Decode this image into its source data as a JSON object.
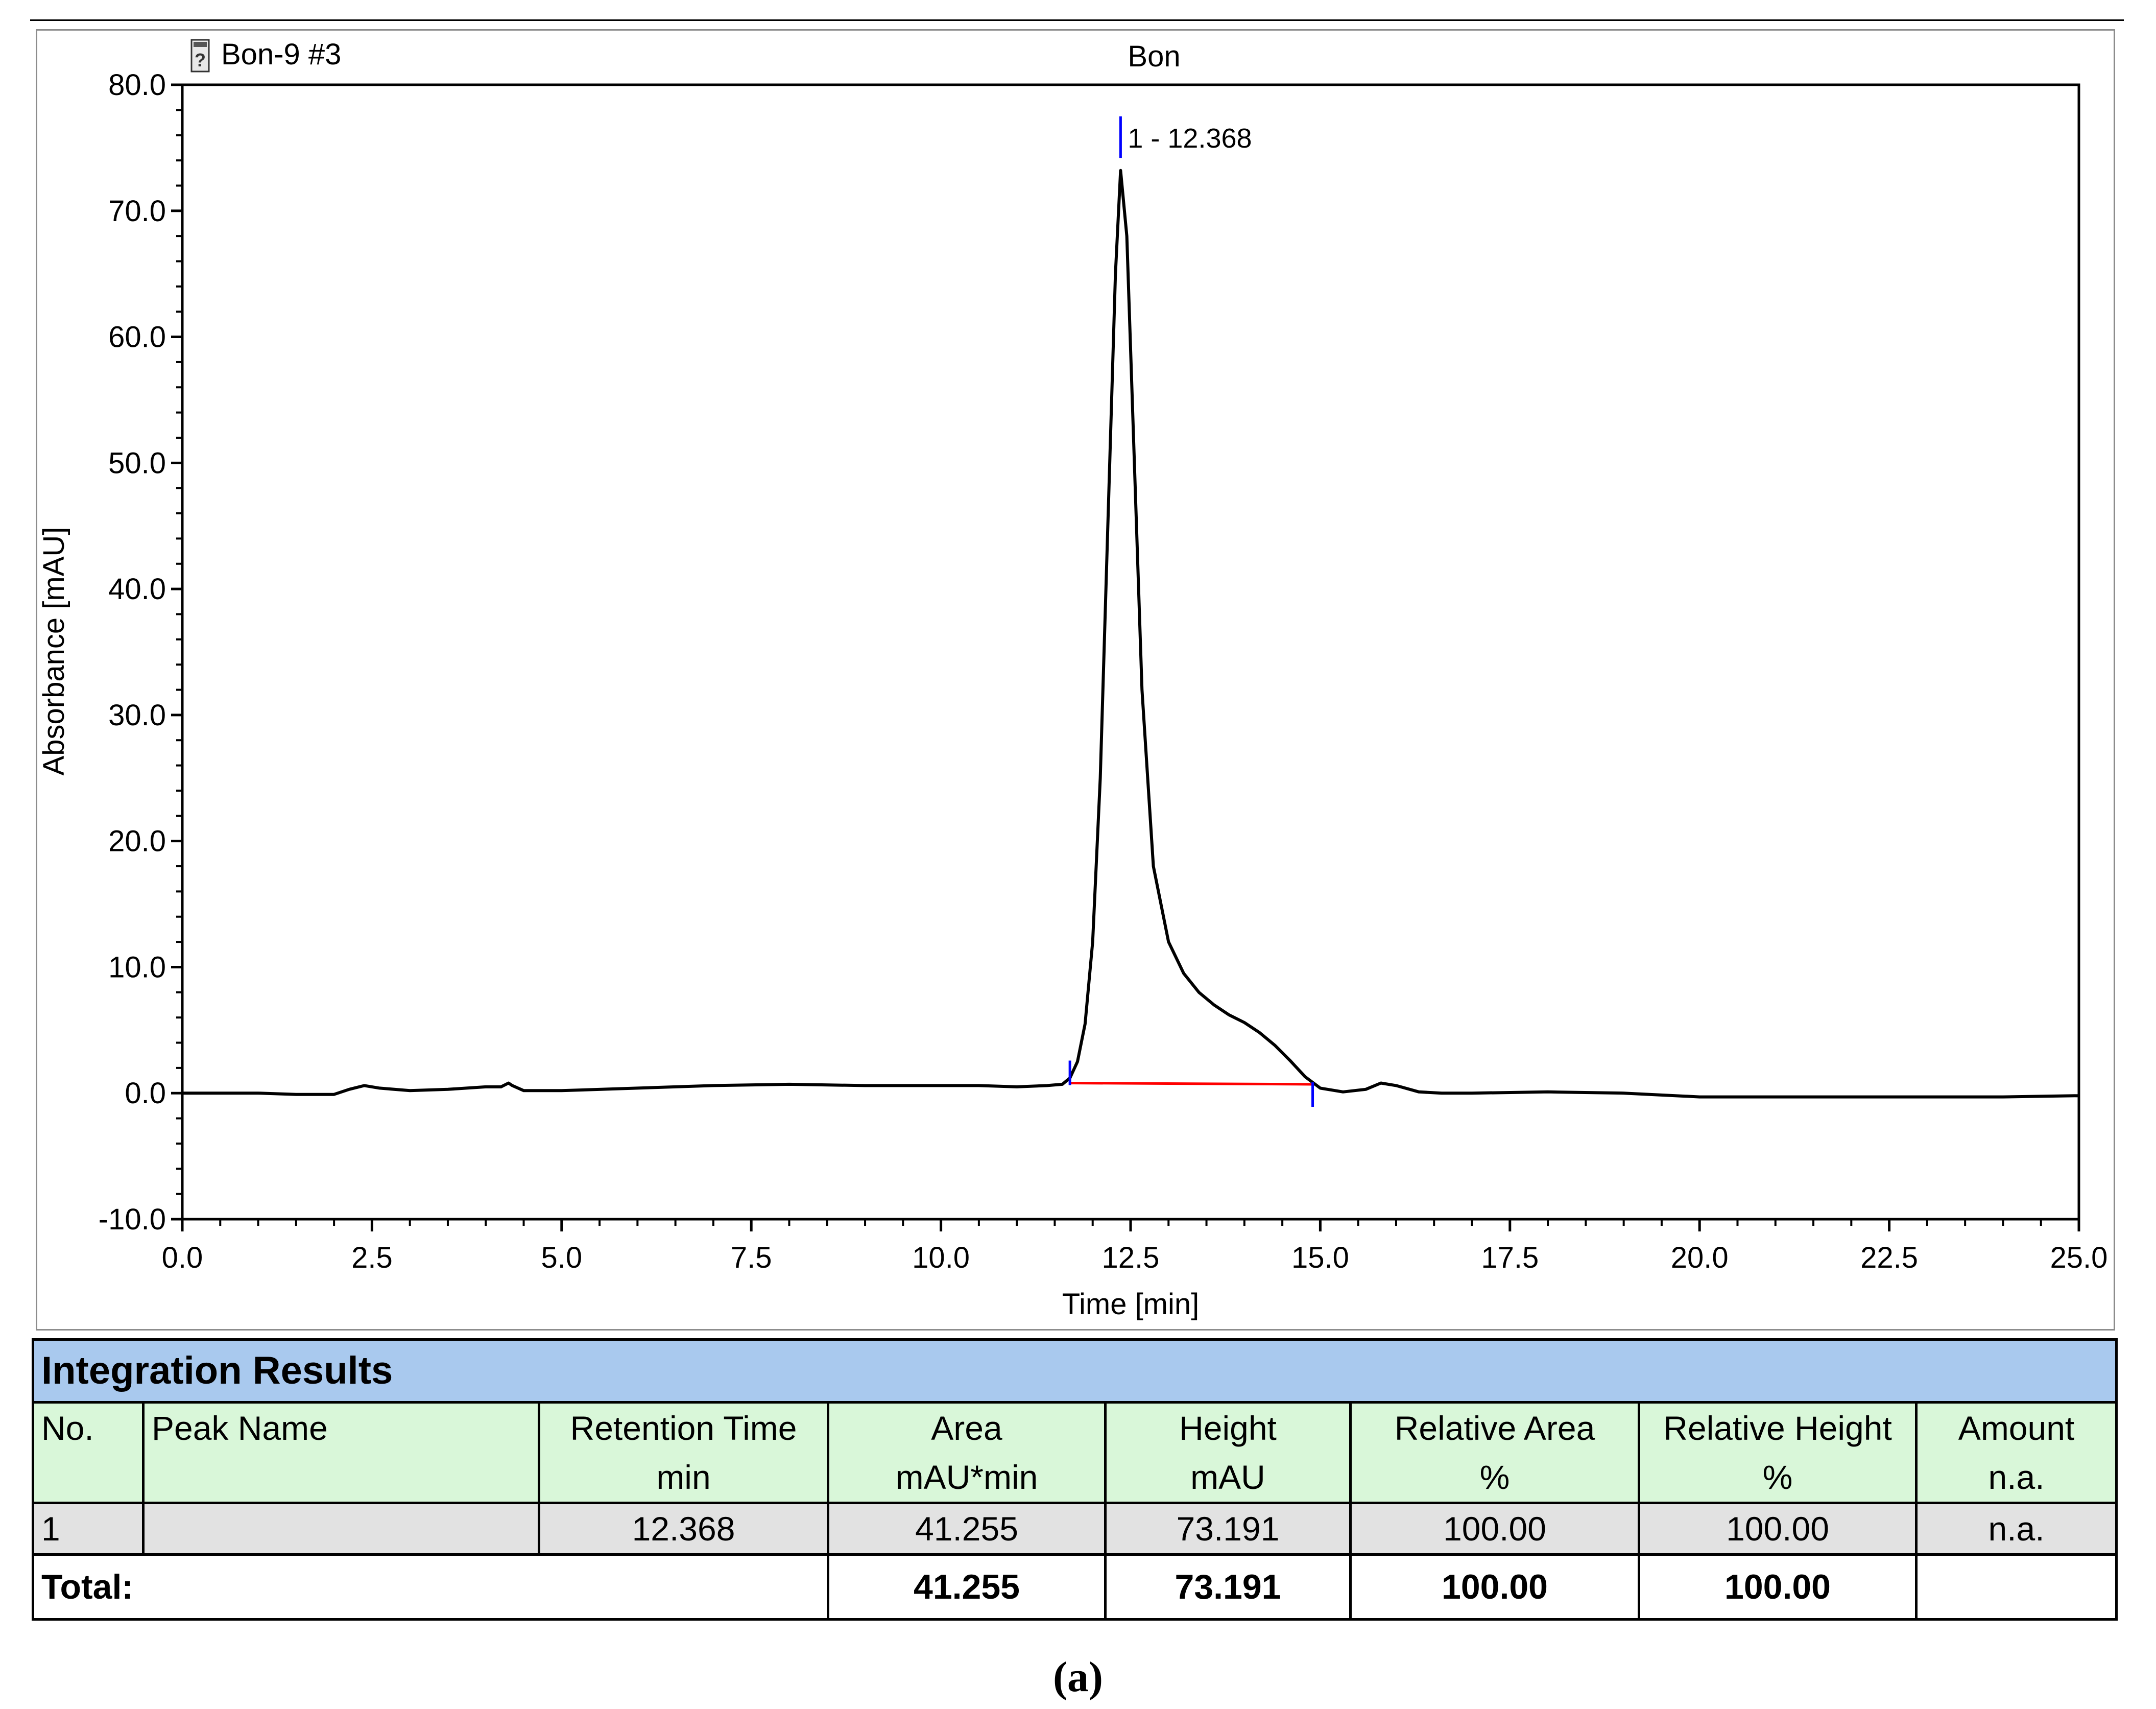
{
  "chart_data": {
    "type": "line",
    "sample_label": "Bon-9 #3",
    "title": "Bon",
    "xlabel": "Time [min]",
    "ylabel": "Absorbance [mAU]",
    "xlim": [
      0,
      25
    ],
    "ylim": [
      -10,
      80
    ],
    "x_ticks": [
      "0.0",
      "2.5",
      "5.0",
      "7.5",
      "10.0",
      "12.5",
      "15.0",
      "17.5",
      "20.0",
      "22.5",
      "25.0"
    ],
    "y_ticks": [
      "-10.0",
      "0.0",
      "10.0",
      "20.0",
      "30.0",
      "40.0",
      "50.0",
      "60.0",
      "70.0",
      "80.0"
    ],
    "grid": false,
    "series": [
      {
        "color": "#000000",
        "x": [
          0.0,
          1.0,
          1.5,
          2.0,
          2.2,
          2.4,
          2.6,
          3.0,
          3.5,
          4.0,
          4.2,
          4.3,
          4.35,
          4.5,
          5.0,
          6.0,
          7.0,
          8.0,
          9.0,
          10.0,
          10.5,
          11.0,
          11.4,
          11.6,
          11.7,
          11.8,
          11.9,
          12.0,
          12.1,
          12.2,
          12.3,
          12.368,
          12.45,
          12.55,
          12.65,
          12.8,
          13.0,
          13.2,
          13.4,
          13.6,
          13.8,
          14.0,
          14.2,
          14.4,
          14.6,
          14.8,
          15.0,
          15.3,
          15.6,
          15.8,
          16.0,
          16.3,
          16.6,
          17.0,
          18.0,
          19.0,
          20.0,
          21.0,
          22.0,
          23.0,
          24.0,
          25.0
        ],
        "y": [
          0.0,
          0.0,
          -0.1,
          -0.1,
          0.3,
          0.6,
          0.4,
          0.2,
          0.3,
          0.5,
          0.5,
          0.8,
          0.6,
          0.2,
          0.2,
          0.4,
          0.6,
          0.7,
          0.6,
          0.6,
          0.6,
          0.5,
          0.6,
          0.7,
          1.2,
          2.5,
          5.5,
          12.0,
          25.0,
          45.0,
          65.0,
          73.2,
          68.0,
          50.0,
          32.0,
          18.0,
          12.0,
          9.5,
          8.0,
          7.0,
          6.2,
          5.6,
          4.8,
          3.8,
          2.6,
          1.3,
          0.4,
          0.1,
          0.3,
          0.8,
          0.6,
          0.1,
          0.0,
          0.0,
          0.1,
          0.0,
          -0.3,
          -0.3,
          -0.3,
          -0.3,
          -0.3,
          -0.2
        ]
      }
    ],
    "baseline": {
      "color": "#ff0000",
      "x": [
        11.7,
        14.9
      ],
      "y": [
        0.8,
        0.7
      ]
    },
    "peak_markers": [
      {
        "x": 11.7,
        "color": "#0000ff"
      },
      {
        "x": 14.9,
        "color": "#0000ff"
      },
      {
        "x": 12.368,
        "color": "#0000ff"
      }
    ],
    "annotations": [
      {
        "text": "1 - 12.368",
        "x": 12.368,
        "y": 75.5
      }
    ]
  },
  "results": {
    "title": "Integration Results",
    "headers": {
      "no": "No.",
      "peak_name": "Peak Name",
      "retention_time": "Retention Time",
      "area": "Area",
      "height": "Height",
      "relative_area": "Relative Area",
      "relative_height": "Relative Height",
      "amount": "Amount"
    },
    "units": {
      "retention_time": "min",
      "area": "mAU*min",
      "height": "mAU",
      "relative_area": "%",
      "relative_height": "%",
      "amount": "n.a."
    },
    "rows": [
      {
        "no": "1",
        "peak_name": "",
        "retention_time": "12.368",
        "area": "41.255",
        "height": "73.191",
        "relative_area": "100.00",
        "relative_height": "100.00",
        "amount": "n.a."
      }
    ],
    "total": {
      "label": "Total:",
      "area": "41.255",
      "height": "73.191",
      "relative_area": "100.00",
      "relative_height": "100.00"
    }
  },
  "caption": "(a)"
}
